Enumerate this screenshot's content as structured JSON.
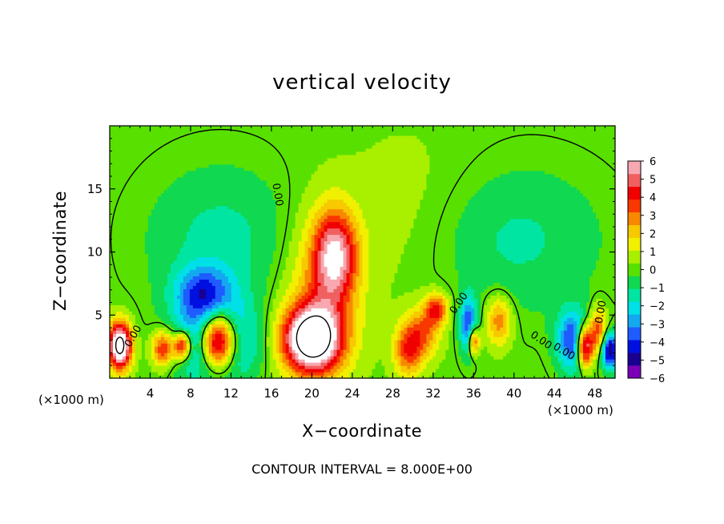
{
  "chart_data": {
    "type": "heatmap",
    "title": "vertical velocity",
    "xlabel": "X−coordinate",
    "ylabel": "Z−coordinate",
    "x_unit_label": "(×1000 m)",
    "z_unit_label": "(×1000 m)",
    "xlim": [
      0,
      50
    ],
    "ylim": [
      0,
      20
    ],
    "x_ticks": [
      4,
      8,
      12,
      16,
      20,
      24,
      28,
      32,
      36,
      40,
      44,
      48
    ],
    "y_ticks": [
      5,
      10,
      15
    ],
    "colorbar": {
      "range": [
        -6,
        6
      ],
      "ticks": [
        6,
        5,
        4,
        3,
        2,
        1,
        0,
        -1,
        -2,
        -3,
        -4,
        -5,
        -6
      ],
      "tick_labels": [
        "6",
        "5",
        "4",
        "3",
        "2",
        "1",
        "0",
        "−1",
        "−2",
        "−3",
        "−4",
        "−5",
        "−6"
      ],
      "colors": [
        "#7a00b8",
        "#1a0090",
        "#0010e0",
        "#1e5cff",
        "#14a8f0",
        "#00e0e6",
        "#00e6a2",
        "#10d850",
        "#58e000",
        "#a8f000",
        "#f0f000",
        "#f8c800",
        "#f88800",
        "#f83800",
        "#f00000",
        "#f06060",
        "#f8a8b0"
      ]
    },
    "features": [
      {
        "kind": "updraft",
        "x": 20,
        "z": 3.1,
        "peak": 9,
        "sx": 2.0,
        "sz": 1.8
      },
      {
        "kind": "updraft",
        "x": 22.3,
        "z": 9.8,
        "peak": 5.5,
        "sx": 1.5,
        "sz": 2.5
      },
      {
        "kind": "updraft",
        "x": 21,
        "z": 6.5,
        "peak": 2.5,
        "sx": 2.6,
        "sz": 4.5
      },
      {
        "kind": "downdraft",
        "x": 10.5,
        "z": 3.0,
        "peak": -6,
        "sx": 2.5,
        "sz": 2.2
      },
      {
        "kind": "updraft",
        "x": 10.7,
        "z": 3.0,
        "peak": 11,
        "sx": 1.3,
        "sz": 1.6
      },
      {
        "kind": "downdraft",
        "x": 9.2,
        "z": 6.8,
        "peak": -3.5,
        "sx": 2.0,
        "sz": 1.5
      },
      {
        "kind": "updraft",
        "x": 1.0,
        "z": 2.6,
        "peak": 9,
        "sx": 0.8,
        "sz": 1.3
      },
      {
        "kind": "updraft",
        "x": 5.3,
        "z": 2.4,
        "peak": 4.5,
        "sx": 0.8,
        "sz": 1.0
      },
      {
        "kind": "updraft",
        "x": 7.2,
        "z": 2.6,
        "peak": 6,
        "sx": 0.6,
        "sz": 0.8
      },
      {
        "kind": "updraft",
        "x": 29.5,
        "z": 2.2,
        "peak": 3.5,
        "sx": 1.0,
        "sz": 1.5
      },
      {
        "kind": "updraft",
        "x": 32.3,
        "z": 5.5,
        "peak": 4,
        "sx": 0.8,
        "sz": 0.9
      },
      {
        "kind": "updraft",
        "x": 31,
        "z": 3.6,
        "peak": 3,
        "sx": 1.2,
        "sz": 1.4
      },
      {
        "kind": "downdraft",
        "x": 35.5,
        "z": 4.2,
        "peak": -4.5,
        "sx": 0.6,
        "sz": 1.6
      },
      {
        "kind": "updraft",
        "x": 36,
        "z": 3.0,
        "peak": 5,
        "sx": 0.4,
        "sz": 0.8
      },
      {
        "kind": "updraft",
        "x": 38.5,
        "z": 4.6,
        "peak": 3.2,
        "sx": 0.9,
        "sz": 1.4
      },
      {
        "kind": "downdraft",
        "x": 46,
        "z": 3.0,
        "peak": -5,
        "sx": 1.2,
        "sz": 1.7
      },
      {
        "kind": "updraft",
        "x": 47.0,
        "z": 2.6,
        "peak": 8,
        "sx": 0.6,
        "sz": 1.2
      },
      {
        "kind": "updraft",
        "x": 48.3,
        "z": 3.8,
        "peak": 4,
        "sx": 0.6,
        "sz": 1.3
      },
      {
        "kind": "downdraft",
        "x": 49.5,
        "z": 2.2,
        "peak": -6,
        "sx": 0.6,
        "sz": 1.0
      },
      {
        "kind": "downdraft",
        "x": 11,
        "z": 11,
        "peak": -1.6,
        "sx": 5,
        "sz": 4
      },
      {
        "kind": "downdraft",
        "x": 40,
        "z": 11,
        "peak": -1.5,
        "sx": 6,
        "sz": 4
      },
      {
        "kind": "updraft",
        "x": 30,
        "z": 13,
        "peak": 0.6,
        "sx": 5,
        "sz": 5
      }
    ],
    "contour_labels": [
      "0.00",
      "0.00",
      "0.00",
      "0.00",
      "0.00",
      "0.00"
    ]
  },
  "contour_note": "CONTOUR INTERVAL = 8.000E+00"
}
